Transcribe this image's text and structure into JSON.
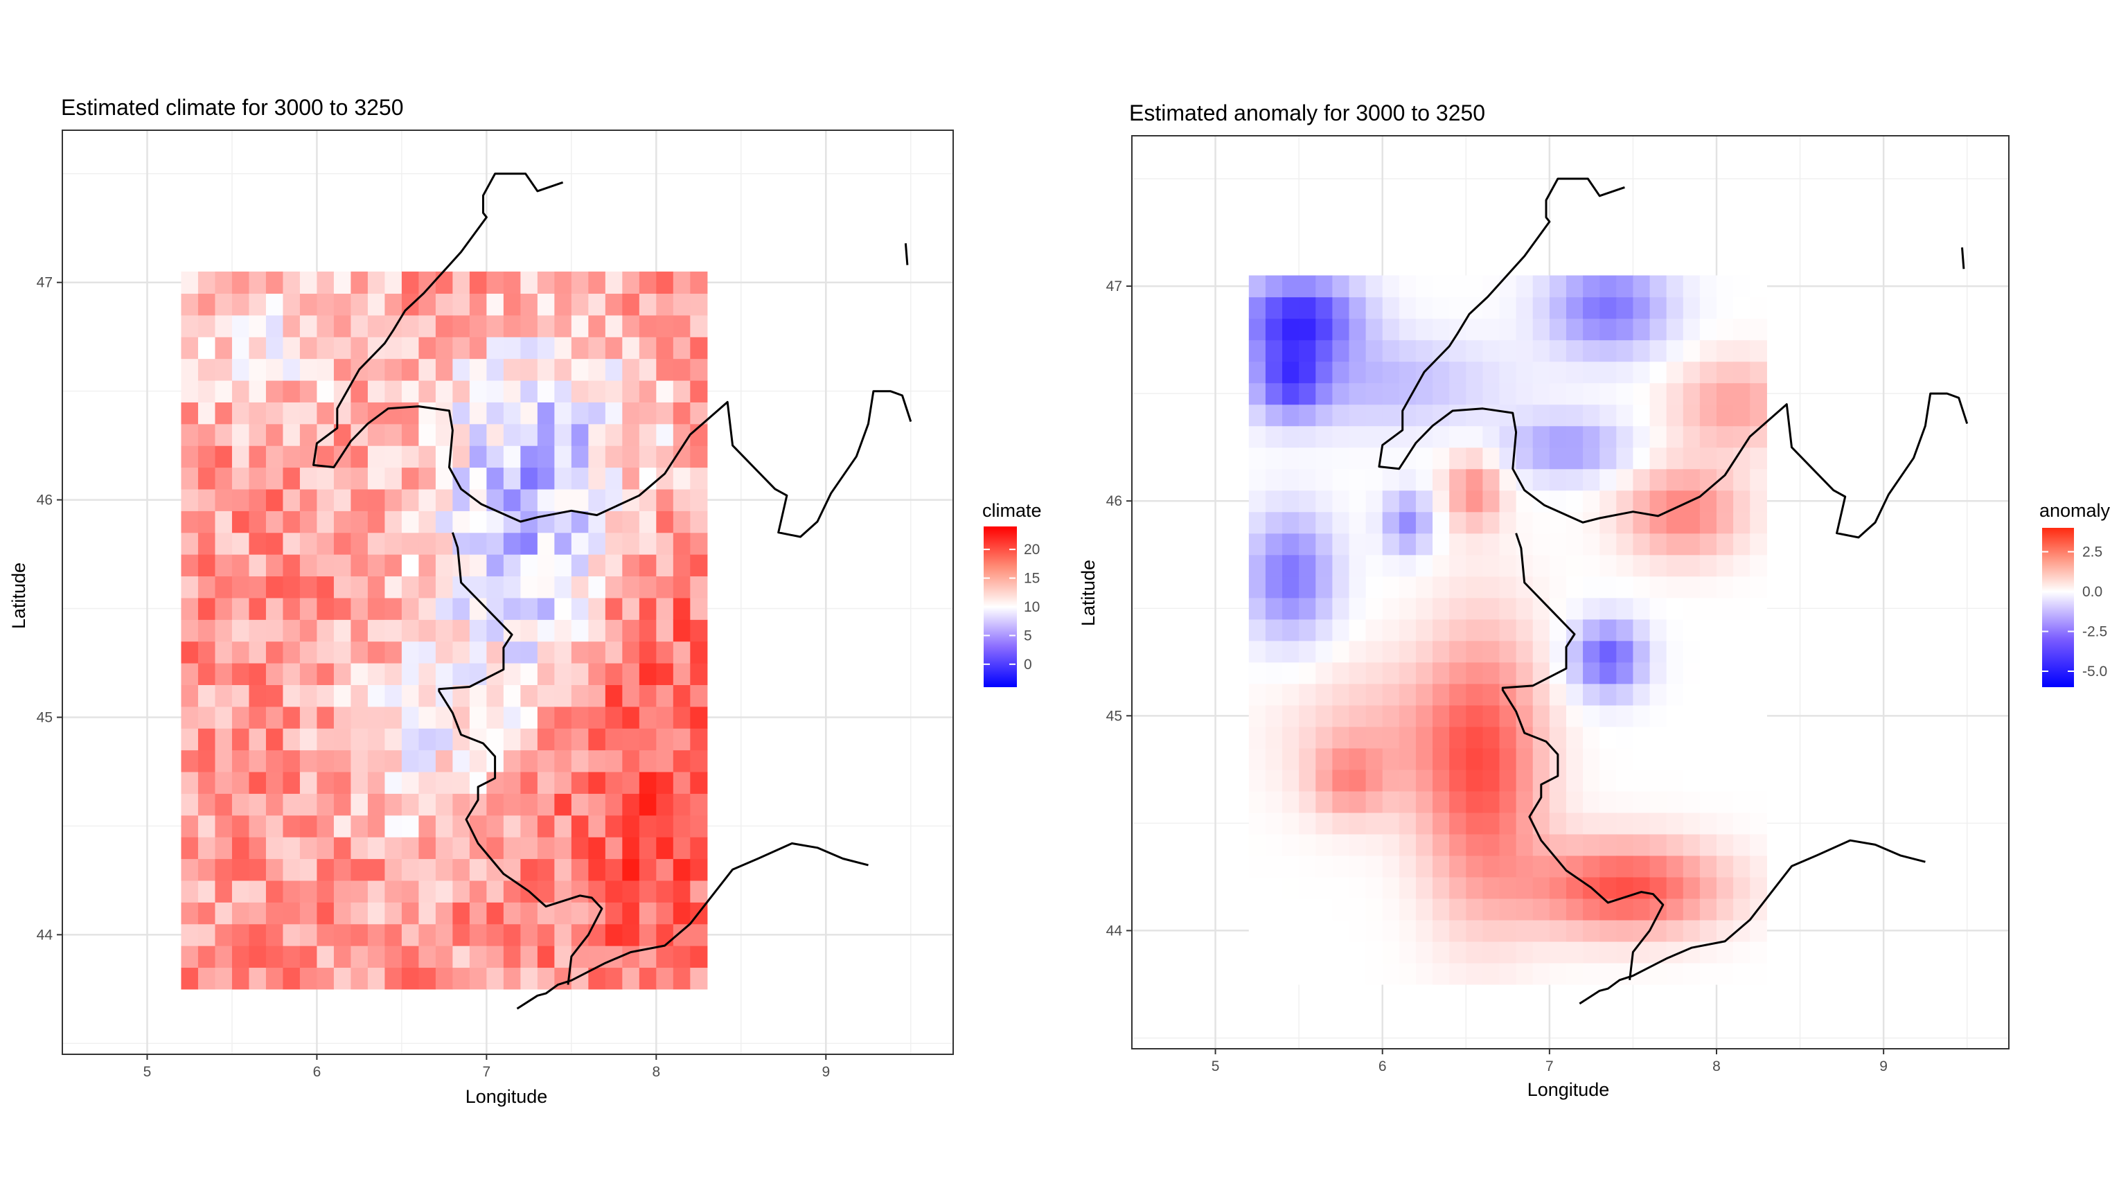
{
  "chart_data": [
    {
      "type": "heatmap",
      "title": "Estimated climate for 3000 to 3250",
      "xlabel": "Longitude",
      "ylabel": "Latitude",
      "xlim": [
        4.5,
        9.75
      ],
      "ylim": [
        43.45,
        47.7
      ],
      "x_ticks": [
        5,
        6,
        7,
        8,
        9
      ],
      "y_ticks": [
        44,
        45,
        46,
        47
      ],
      "grid": true,
      "legend": {
        "title": "climate",
        "position": "right",
        "breaks": [
          0,
          5,
          10,
          15,
          20
        ],
        "range": [
          -4,
          24
        ],
        "low_color": "#0000ff",
        "mid_color": "#ffffff",
        "high_color": "#ff0000",
        "midpoint": 10
      },
      "grid_extent": {
        "lon": [
          5.2,
          8.3
        ],
        "lat": [
          43.75,
          47.03
        ]
      },
      "cell_size": 0.1
    },
    {
      "type": "heatmap",
      "title": "Estimated anomaly for 3000 to 3250",
      "xlabel": "Longitude",
      "ylabel": "Latitude",
      "xlim": [
        4.5,
        9.75
      ],
      "ylim": [
        43.45,
        47.7
      ],
      "x_ticks": [
        5,
        6,
        7,
        8,
        9
      ],
      "y_ticks": [
        44,
        45,
        46,
        47
      ],
      "grid": true,
      "legend": {
        "title": "anomaly",
        "position": "right",
        "breaks": [
          -5.0,
          -2.5,
          0.0,
          2.5
        ],
        "break_labels": [
          "-5.0",
          "-2.5",
          "0.0",
          "2.5"
        ],
        "range": [
          -6,
          4
        ],
        "low_color": "#0000ff",
        "mid_color": "#ffffff",
        "high_color": "#ff0000",
        "midpoint": 0
      },
      "grid_extent": {
        "lon": [
          5.2,
          8.3
        ],
        "lat": [
          43.75,
          47.03
        ]
      },
      "cell_size": 0.1
    }
  ],
  "coastlines": [
    [
      [
        7.45,
        47.46
      ],
      [
        7.3,
        47.42
      ],
      [
        7.23,
        47.5
      ],
      [
        7.05,
        47.5
      ],
      [
        6.98,
        47.4
      ],
      [
        6.98,
        47.32
      ],
      [
        7.0,
        47.3
      ],
      [
        6.85,
        47.14
      ],
      [
        6.63,
        46.95
      ],
      [
        6.52,
        46.87
      ],
      [
        6.45,
        46.78
      ],
      [
        6.4,
        46.72
      ],
      [
        6.25,
        46.6
      ],
      [
        6.12,
        46.42
      ],
      [
        6.12,
        46.33
      ],
      [
        6.0,
        46.26
      ],
      [
        5.98,
        46.16
      ],
      [
        6.1,
        46.15
      ],
      [
        6.2,
        46.27
      ],
      [
        6.3,
        46.35
      ],
      [
        6.42,
        46.42
      ],
      [
        6.6,
        46.43
      ],
      [
        6.78,
        46.41
      ],
      [
        6.8,
        46.32
      ],
      [
        6.78,
        46.15
      ],
      [
        6.85,
        46.05
      ],
      [
        6.97,
        45.98
      ],
      [
        7.2,
        45.9
      ],
      [
        7.3,
        45.92
      ],
      [
        7.5,
        45.95
      ],
      [
        7.65,
        45.93
      ],
      [
        7.9,
        46.02
      ],
      [
        8.05,
        46.12
      ],
      [
        8.2,
        46.3
      ],
      [
        8.42,
        46.45
      ],
      [
        8.45,
        46.25
      ],
      [
        8.6,
        46.13
      ],
      [
        8.7,
        46.05
      ],
      [
        8.77,
        46.02
      ],
      [
        8.72,
        45.85
      ],
      [
        8.85,
        45.83
      ],
      [
        8.95,
        45.9
      ],
      [
        9.03,
        46.03
      ],
      [
        9.18,
        46.2
      ],
      [
        9.25,
        46.35
      ],
      [
        9.28,
        46.5
      ],
      [
        9.38,
        46.5
      ],
      [
        9.45,
        46.48
      ],
      [
        9.5,
        46.36
      ]
    ],
    [
      [
        9.47,
        47.18
      ],
      [
        9.48,
        47.08
      ]
    ],
    [
      [
        7.18,
        43.66
      ],
      [
        7.3,
        43.72
      ],
      [
        7.35,
        43.73
      ],
      [
        7.42,
        43.77
      ],
      [
        7.5,
        43.79
      ],
      [
        7.6,
        43.83
      ],
      [
        7.7,
        43.87
      ],
      [
        7.85,
        43.92
      ],
      [
        8.05,
        43.95
      ],
      [
        8.2,
        44.05
      ],
      [
        8.3,
        44.15
      ],
      [
        8.45,
        44.3
      ],
      [
        8.6,
        44.35
      ],
      [
        8.8,
        44.42
      ],
      [
        8.95,
        44.4
      ],
      [
        9.1,
        44.35
      ],
      [
        9.25,
        44.32
      ]
    ],
    [
      [
        7.48,
        43.77
      ],
      [
        7.5,
        43.9
      ],
      [
        7.6,
        44.0
      ],
      [
        7.68,
        44.12
      ],
      [
        7.62,
        44.17
      ],
      [
        7.55,
        44.18
      ],
      [
        7.35,
        44.13
      ],
      [
        7.25,
        44.2
      ],
      [
        7.1,
        44.28
      ],
      [
        6.95,
        44.42
      ],
      [
        6.88,
        44.53
      ],
      [
        6.95,
        44.62
      ],
      [
        6.95,
        44.68
      ],
      [
        7.05,
        44.72
      ],
      [
        7.05,
        44.82
      ],
      [
        6.98,
        44.88
      ],
      [
        6.85,
        44.92
      ],
      [
        6.8,
        45.02
      ],
      [
        6.72,
        45.12
      ],
      [
        6.72,
        45.13
      ],
      [
        6.9,
        45.14
      ],
      [
        7.1,
        45.22
      ],
      [
        7.1,
        45.32
      ],
      [
        7.15,
        45.38
      ],
      [
        7.0,
        45.5
      ],
      [
        6.85,
        45.62
      ],
      [
        6.83,
        45.78
      ],
      [
        6.8,
        45.85
      ]
    ]
  ]
}
